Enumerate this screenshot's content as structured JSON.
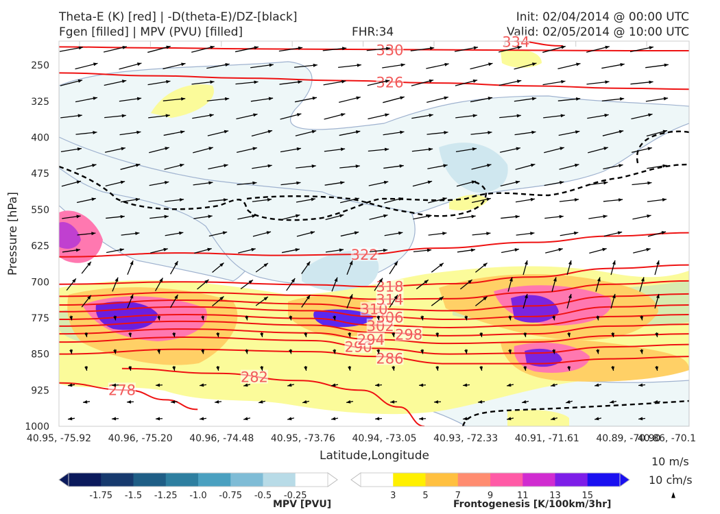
{
  "header": {
    "title_left_1": "Theta-E (K) [red] | -D(theta-E)/DZ-[black]",
    "title_left_2": "Fgen [filled] | MPV (PVU) [filled]",
    "fhr": "FHR:34",
    "init": "Init: 02/04/2014 @ 00:00 UTC",
    "valid": "Valid: 02/05/2014 @ 10:00 UTC"
  },
  "chart_data": {
    "type": "cross-section",
    "title": "Theta-E (K) [red] | -D(theta-E)/DZ-[black]",
    "xlabel": "Latitude,Longitude",
    "ylabel": "Pressure [hPa]",
    "y_axis": {
      "scale": "linear-inverted",
      "ylim": [
        1000,
        200
      ],
      "ticks": [
        250,
        325,
        400,
        475,
        550,
        625,
        700,
        775,
        850,
        925,
        1000
      ]
    },
    "x_ticks": [
      "40.95, -75.92",
      "40.96, -75.20",
      "40.96, -74.48",
      "40.95, -73.76",
      "40.94, -73.05",
      "40.93, -72.33",
      "40.91, -71.61",
      "40.89, -70.90",
      "40.86, -70.1"
    ],
    "theta_e_contours": [
      {
        "label": "278",
        "p": [
          910,
          925,
          945,
          965
        ],
        "x": [
          0.0,
          0.11,
          0.17,
          0.22
        ]
      },
      {
        "label": "282",
        "p": [
          880,
          890,
          905,
          925,
          960,
          1000
        ],
        "x": [
          0.1,
          0.25,
          0.38,
          0.48,
          0.54,
          0.58
        ]
      },
      {
        "label": "286",
        "p": [
          850,
          840,
          845,
          855,
          870,
          870,
          860,
          855
        ],
        "x": [
          0.0,
          0.2,
          0.4,
          0.5,
          0.62,
          0.75,
          0.88,
          1.0
        ]
      },
      {
        "label": "290",
        "p": [
          825,
          815,
          822,
          838,
          850,
          848,
          835,
          830
        ],
        "x": [
          0.0,
          0.2,
          0.4,
          0.5,
          0.62,
          0.75,
          0.88,
          1.0
        ]
      },
      {
        "label": "294",
        "p": [
          808,
          798,
          806,
          820,
          828,
          825,
          812,
          808
        ],
        "x": [
          0.0,
          0.2,
          0.4,
          0.5,
          0.62,
          0.75,
          0.88,
          1.0
        ]
      },
      {
        "label": "298",
        "p": [
          792,
          782,
          790,
          805,
          812,
          808,
          792,
          788
        ],
        "x": [
          0.0,
          0.2,
          0.4,
          0.5,
          0.62,
          0.75,
          0.88,
          1.0
        ]
      },
      {
        "label": "302",
        "p": [
          778,
          768,
          776,
          790,
          795,
          790,
          772,
          768
        ],
        "x": [
          0.0,
          0.2,
          0.4,
          0.5,
          0.62,
          0.75,
          0.88,
          1.0
        ]
      },
      {
        "label": "306",
        "p": [
          762,
          752,
          760,
          772,
          778,
          772,
          752,
          748
        ],
        "x": [
          0.0,
          0.2,
          0.4,
          0.5,
          0.62,
          0.75,
          0.88,
          1.0
        ]
      },
      {
        "label": "310",
        "p": [
          748,
          738,
          746,
          756,
          760,
          750,
          730,
          725
        ],
        "x": [
          0.0,
          0.2,
          0.4,
          0.5,
          0.62,
          0.75,
          0.88,
          1.0
        ]
      },
      {
        "label": "314",
        "p": [
          730,
          722,
          728,
          736,
          735,
          722,
          705,
          698
        ],
        "x": [
          0.0,
          0.2,
          0.4,
          0.5,
          0.62,
          0.75,
          0.88,
          1.0
        ]
      },
      {
        "label": "318",
        "p": [
          705,
          700,
          706,
          710,
          704,
          690,
          672,
          665
        ],
        "x": [
          0.0,
          0.2,
          0.4,
          0.5,
          0.62,
          0.75,
          0.88,
          1.0
        ]
      },
      {
        "label": "322",
        "p": [
          648,
          640,
          645,
          643,
          630,
          618,
          605,
          598
        ],
        "x": [
          0.0,
          0.2,
          0.35,
          0.48,
          0.6,
          0.75,
          0.88,
          1.0
        ]
      },
      {
        "label": "326",
        "p": [
          266,
          272,
          277,
          282,
          287,
          293,
          298,
          300
        ],
        "x": [
          0.0,
          0.15,
          0.3,
          0.45,
          0.6,
          0.75,
          0.9,
          1.0
        ]
      },
      {
        "label": "330",
        "p": [
          212,
          214,
          216,
          217,
          218,
          219,
          220,
          220
        ],
        "x": [
          0.0,
          0.15,
          0.3,
          0.45,
          0.6,
          0.75,
          0.9,
          1.0
        ]
      },
      {
        "label": "334",
        "p": [
          195,
          200,
          210
        ],
        "x": [
          0.65,
          0.72,
          0.8
        ]
      }
    ],
    "mpv_colorbar": {
      "label": "MPV [PVU]",
      "ticks": [
        "-1.75",
        "-1.5",
        "-1.25",
        "-1.0",
        "-0.75",
        "-0.5",
        "-0.25"
      ],
      "colors": [
        "#0b1a5c",
        "#173a6e",
        "#1f5e86",
        "#2e7fa0",
        "#4aa0c0",
        "#7fbcd6",
        "#b8dbe7",
        "#ffffff"
      ]
    },
    "fgen_colorbar": {
      "label": "Frontogenesis [K/100km/3hr]",
      "ticks": [
        "3",
        "5",
        "7",
        "9",
        "11",
        "13",
        "15"
      ],
      "colors": [
        "#ffffff",
        "#fff000",
        "#ffc040",
        "#ff8c70",
        "#ff5aa6",
        "#d02cd0",
        "#7d1ee8",
        "#1a10f0"
      ]
    },
    "vector_legend": [
      "10 m/s",
      "10 cm/s"
    ]
  }
}
